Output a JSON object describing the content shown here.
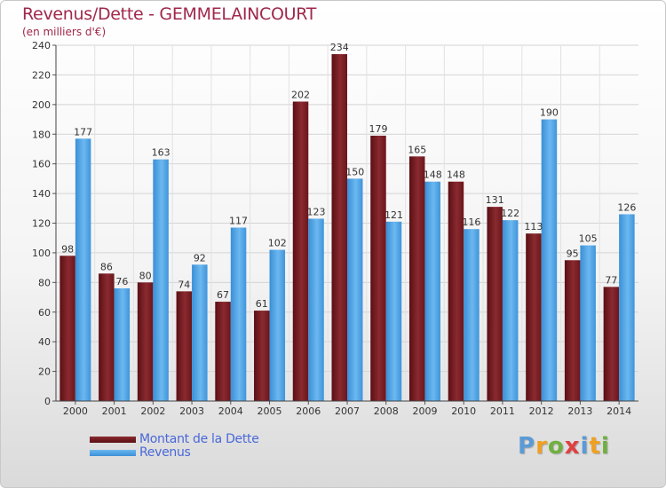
{
  "title": "Revenus/Dette - GEMMELAINCOURT",
  "subtitle": "(en milliers d'€)",
  "logo": {
    "letters": [
      "P",
      "r",
      "o",
      "x",
      "i",
      "t",
      "i"
    ],
    "colors": [
      "#5b9bd5",
      "#f0a020",
      "#70b040",
      "#e04040",
      "#5b9bd5",
      "#f0a020",
      "#70b040"
    ]
  },
  "colors": {
    "dette": "#7a1a1f",
    "revenus": "#4aa3e8",
    "title": "#a0284a",
    "legend_text": "#4a68d8"
  },
  "chart_data": {
    "type": "bar",
    "title": "Revenus/Dette - GEMMELAINCOURT",
    "ylabel": "(en milliers d'€)",
    "xlabel": "",
    "ylim": [
      0,
      240
    ],
    "yticks": [
      0,
      20,
      40,
      60,
      80,
      100,
      120,
      140,
      160,
      180,
      200,
      220,
      240
    ],
    "categories": [
      "2000",
      "2001",
      "2002",
      "2003",
      "2004",
      "2005",
      "2006",
      "2007",
      "2008",
      "2009",
      "2010",
      "2011",
      "2012",
      "2013",
      "2014"
    ],
    "series": [
      {
        "name": "Montant de la Dette",
        "color": "#7a1a1f",
        "values": [
          98,
          86,
          80,
          74,
          67,
          61,
          202,
          234,
          179,
          165,
          148,
          131,
          113,
          95,
          77
        ]
      },
      {
        "name": "Revenus",
        "color": "#4aa3e8",
        "values": [
          177,
          76,
          163,
          92,
          117,
          102,
          123,
          150,
          121,
          148,
          116,
          122,
          190,
          105,
          126
        ]
      }
    ],
    "grid": true,
    "legend": "bottom-left"
  }
}
